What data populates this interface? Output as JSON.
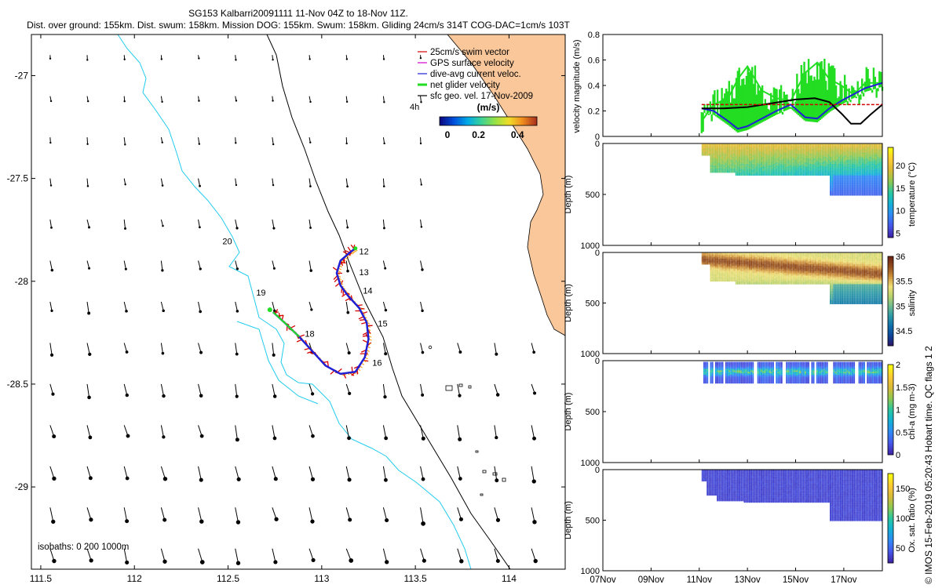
{
  "title_line1": "SG153 Kalbarri20091111 11-Nov 04Z to 18-Nov 11Z.",
  "title_line2": "Dist. over ground: 155km. Dist. swum: 158km. Mission DOG: 155km. Swum: 158km. Gliding 24cm/s 314T COG-DAC=1cm/s 103T",
  "watermark": "© IMOS 15-Feb-2019 05:20:43 Hobart time. QC flags 1  2",
  "colors": {
    "swim_vector": "#d40000",
    "gps_surface": "#d000d0",
    "dive_avg": "#1f1fd6",
    "net_glider": "#22dd22",
    "sfc_geo": "#000000",
    "isobath": "#22ccee",
    "land": "#f9c79a"
  },
  "chart_data": [
    {
      "type": "map",
      "x_ticks": [
        "111.5",
        "112",
        "112.5",
        "113",
        "113.5",
        "114"
      ],
      "x_tick_values": [
        111.5,
        112,
        112.5,
        113,
        113.5,
        114
      ],
      "xlim": [
        111.45,
        114.3
      ],
      "y_ticks": [
        "-27",
        "-27.5",
        "-28",
        "-28.5",
        "-29"
      ],
      "y_tick_values": [
        -27,
        -27.5,
        -28,
        -28.5,
        -29
      ],
      "ylim": [
        -29.4,
        -26.8
      ],
      "legend": [
        {
          "label": "25cm/s swim vector",
          "color": "#d40000"
        },
        {
          "label": "GPS surface velocity",
          "color": "#d000d0"
        },
        {
          "label": "dive-avg current veloc.",
          "color": "#1f1fd6"
        },
        {
          "label": "net glider velocity",
          "color": "#22dd22"
        },
        {
          "label": "sfc geo. vel. 17-Nov-2009",
          "color": "#000000"
        }
      ],
      "legend_placement": "top-right",
      "colorbar": {
        "title": "(m/s)",
        "ticks": [
          "0",
          "0.2",
          "0.4"
        ],
        "tick_values": [
          0,
          0.2,
          0.4
        ],
        "range": [
          0,
          0.5
        ]
      },
      "annotation_4h": "4h",
      "isobaths_label": "isobaths: 0   200  1000m",
      "day_labels": [
        {
          "text": "12",
          "lon": 113.2,
          "lat": -27.87
        },
        {
          "text": "13",
          "lon": 113.2,
          "lat": -27.97
        },
        {
          "text": "14",
          "lon": 113.22,
          "lat": -28.06
        },
        {
          "text": "15",
          "lon": 113.3,
          "lat": -28.22
        },
        {
          "text": "16",
          "lon": 113.27,
          "lat": -28.41
        },
        {
          "text": "18",
          "lon": 112.91,
          "lat": -28.27
        },
        {
          "text": "19",
          "lon": 112.65,
          "lat": -28.07
        },
        {
          "text": "20",
          "lon": 112.47,
          "lat": -27.82
        }
      ],
      "track": [
        [
          112.74,
          -28.15
        ],
        [
          112.8,
          -28.2
        ],
        [
          112.88,
          -28.27
        ],
        [
          112.95,
          -28.34
        ],
        [
          113.02,
          -28.41
        ],
        [
          113.1,
          -28.45
        ],
        [
          113.18,
          -28.44
        ],
        [
          113.23,
          -28.37
        ],
        [
          113.25,
          -28.28
        ],
        [
          113.24,
          -28.2
        ],
        [
          113.2,
          -28.13
        ],
        [
          113.14,
          -28.07
        ],
        [
          113.1,
          -28.02
        ],
        [
          113.08,
          -27.96
        ],
        [
          113.1,
          -27.9
        ],
        [
          113.15,
          -27.86
        ],
        [
          113.18,
          -27.84
        ]
      ]
    },
    {
      "type": "line",
      "ylabel": "velocity magnitude (m/s)",
      "ylim": [
        0,
        0.8
      ],
      "y_ticks": [
        "0",
        "0.2",
        "0.4",
        "0.6",
        "0.8"
      ],
      "y_tick_values": [
        0,
        0.2,
        0.4,
        0.6,
        0.8
      ],
      "x_range_days": [
        7,
        18.6
      ],
      "series": [
        {
          "color": "#22dd22",
          "x": [
            11.1,
            11.6,
            12.2,
            12.6,
            13.0,
            13.6,
            14.2,
            14.8,
            15.4,
            15.9,
            16.4,
            16.9,
            17.4,
            17.9,
            18.6
          ],
          "y": [
            0.12,
            0.25,
            0.3,
            0.45,
            0.55,
            0.36,
            0.3,
            0.28,
            0.5,
            0.58,
            0.45,
            0.4,
            0.33,
            0.42,
            0.42
          ]
        },
        {
          "color": "#1f1fd6",
          "x": [
            11.1,
            11.6,
            12.2,
            12.6,
            13.0,
            13.6,
            14.2,
            14.8,
            15.4,
            15.9,
            16.4,
            16.9,
            17.4,
            17.9,
            18.6
          ],
          "y": [
            0.22,
            0.2,
            0.12,
            0.06,
            0.08,
            0.14,
            0.2,
            0.25,
            0.15,
            0.14,
            0.22,
            0.28,
            0.33,
            0.38,
            0.42
          ]
        },
        {
          "color": "#000000",
          "x": [
            11.1,
            12.0,
            13.0,
            14.0,
            15.0,
            15.8,
            16.4,
            16.9,
            17.3,
            17.7,
            18.1,
            18.6
          ],
          "y": [
            0.22,
            0.22,
            0.23,
            0.26,
            0.29,
            0.3,
            0.27,
            0.18,
            0.1,
            0.1,
            0.17,
            0.25
          ]
        },
        {
          "color": "#d40000",
          "x": [
            11.1,
            18.6
          ],
          "y": [
            0.25,
            0.25
          ]
        }
      ]
    },
    {
      "type": "heatmap",
      "ylabel": "Depth (m)",
      "y_ticks": [
        "0",
        "500",
        "1000"
      ],
      "y_tick_values": [
        0,
        500,
        1000
      ],
      "ylim": [
        1000,
        0
      ],
      "cbar_label": "temperature (°C)",
      "cbar_ticks": [
        "5",
        "10",
        "15",
        "20"
      ],
      "cbar_tick_values": [
        5,
        10,
        15,
        20
      ],
      "cbar_range": [
        4,
        24
      ],
      "palette": "parula"
    },
    {
      "type": "heatmap",
      "ylabel": "Depth (m)",
      "y_ticks": [
        "0",
        "500",
        "1000"
      ],
      "y_tick_values": [
        0,
        500,
        1000
      ],
      "ylim": [
        1000,
        0
      ],
      "cbar_label": "salinity",
      "cbar_ticks": [
        "34.5",
        "35",
        "35.5",
        "36"
      ],
      "cbar_tick_values": [
        34.5,
        35,
        35.5,
        36
      ],
      "cbar_range": [
        34.2,
        36
      ],
      "palette": "haline"
    },
    {
      "type": "heatmap",
      "ylabel": "Depth (m)",
      "y_ticks": [
        "0",
        "500",
        "1000"
      ],
      "y_tick_values": [
        0,
        500,
        1000
      ],
      "ylim": [
        1000,
        0
      ],
      "cbar_label": "chl-a (mg m-3)",
      "cbar_ticks": [
        "0",
        "0.5",
        "1",
        "1.5",
        "2"
      ],
      "cbar_tick_values": [
        0,
        0.5,
        1,
        1.5,
        2
      ],
      "cbar_range": [
        0,
        2
      ],
      "palette": "parula"
    },
    {
      "type": "heatmap",
      "ylabel": "Depth (m)",
      "y_ticks": [
        "0",
        "500",
        "1000"
      ],
      "y_tick_values": [
        0,
        500,
        1000
      ],
      "ylim": [
        1000,
        0
      ],
      "cbar_label": "Ox. sat. ratio (%)",
      "cbar_ticks": [
        "50",
        "100",
        "150"
      ],
      "cbar_tick_values": [
        50,
        100,
        150
      ],
      "cbar_range": [
        25,
        175
      ],
      "palette": "parula",
      "x_ticks": [
        "07Nov",
        "09Nov",
        "11Nov",
        "13Nov",
        "15Nov",
        "17Nov"
      ],
      "x_tick_days": [
        7,
        9,
        11,
        13,
        15,
        17
      ]
    }
  ]
}
